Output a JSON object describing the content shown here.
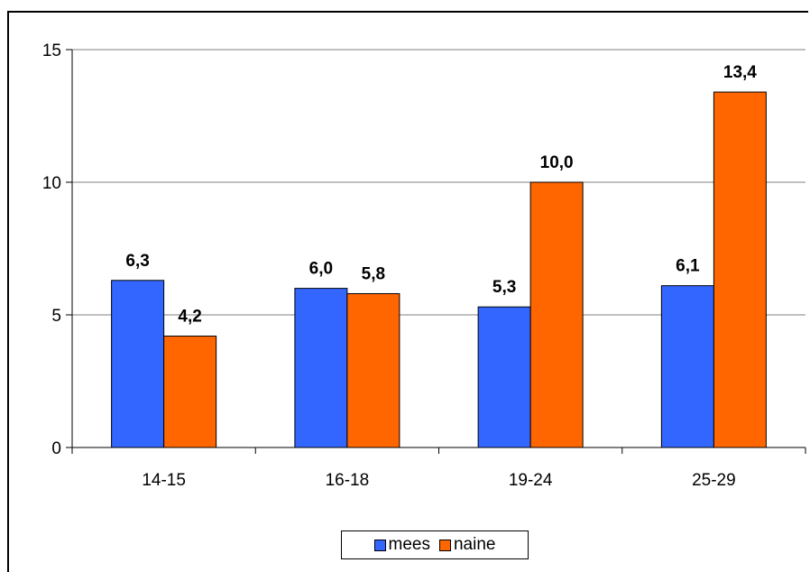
{
  "chart_data": {
    "type": "bar",
    "categories": [
      "14-15",
      "16-18",
      "19-24",
      "25-29"
    ],
    "series": [
      {
        "name": "mees",
        "values": [
          6.3,
          6.0,
          5.3,
          6.1
        ],
        "labels": [
          "6,3",
          "6,0",
          "5,3",
          "6,1"
        ],
        "color": "#3366ff"
      },
      {
        "name": "naine",
        "values": [
          4.2,
          5.8,
          10.0,
          13.4
        ],
        "labels": [
          "4,2",
          "5,8",
          "10,0",
          "13,4"
        ],
        "color": "#ff6600"
      }
    ],
    "yticks": [
      "0",
      "5",
      "10",
      "15"
    ],
    "ylim": [
      0,
      15
    ],
    "grid": true,
    "legend": "bottom"
  }
}
